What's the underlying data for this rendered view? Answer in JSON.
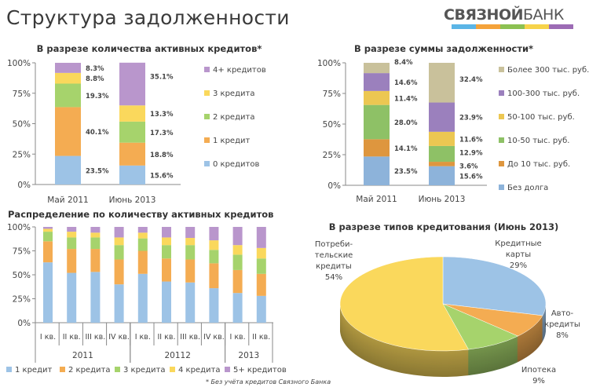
{
  "page": {
    "title": "Структура задолженности",
    "logo": {
      "bold": "СВЯЗНОЙ",
      "light": "БАНК",
      "stripe_colors": [
        "#5bb5e6",
        "#f4a23a",
        "#8cc152",
        "#f6d34a",
        "#9c6bb5"
      ]
    },
    "footnote": "* Без учёта кредитов Связного Банка"
  },
  "chart_data": [
    {
      "type": "bar",
      "stacked": true,
      "title": "В разрезе количества активных кредитов*",
      "categories": [
        "Май 2011",
        "Июнь 2013"
      ],
      "yticks": [
        "0%",
        "25%",
        "50%",
        "75%",
        "100%"
      ],
      "ylim": [
        0,
        100
      ],
      "legend_position": "right",
      "series": [
        {
          "name": "0 кредитов",
          "values": [
            23.5,
            15.6
          ],
          "color": "#9dc3e6"
        },
        {
          "name": "1 кредит",
          "values": [
            40.1,
            18.8
          ],
          "color": "#f4ac52"
        },
        {
          "name": "2 кредита",
          "values": [
            19.3,
            17.3
          ],
          "color": "#a6d36c"
        },
        {
          "name": "3 кредита",
          "values": [
            8.8,
            13.3
          ],
          "color": "#fad85c"
        },
        {
          "name": "4+ кредитов",
          "values": [
            8.3,
            35.1
          ],
          "color": "#b996cc"
        }
      ]
    },
    {
      "type": "bar",
      "stacked": true,
      "title": "В разрезе суммы задолженности*",
      "categories": [
        "Май 2011",
        "Июнь 2013"
      ],
      "yticks": [
        "0%",
        "25%",
        "50%",
        "75%",
        "100%"
      ],
      "ylim": [
        0,
        100
      ],
      "legend_position": "right",
      "series": [
        {
          "name": "Без долга",
          "values": [
            23.5,
            15.6
          ],
          "color": "#8db3da"
        },
        {
          "name": "До 10 тыс. руб.",
          "values": [
            14.1,
            3.6
          ],
          "color": "#de963e"
        },
        {
          "name": "10-50 тыс. руб.",
          "values": [
            28.0,
            12.9
          ],
          "color": "#8ec166"
        },
        {
          "name": "50-100 тыс. руб.",
          "values": [
            11.4,
            11.6
          ],
          "color": "#ecc752"
        },
        {
          "name": "100-300 тыс. руб.",
          "values": [
            14.6,
            23.9
          ],
          "color": "#9b80bd"
        },
        {
          "name": "Более 300 тыс. руб.",
          "values": [
            8.4,
            32.4
          ],
          "color": "#c9c19b"
        }
      ]
    },
    {
      "type": "bar",
      "stacked": true,
      "title": "Распределение по количеству активных кредитов",
      "categories": [
        "I кв.",
        "II кв.",
        "III кв.",
        "IV кв.",
        "I кв.",
        "II кв.",
        "III кв.",
        "IV кв.",
        "I кв.",
        "II кв."
      ],
      "groups": [
        {
          "label": "2011",
          "count": 4
        },
        {
          "label": "20112",
          "count": 4
        },
        {
          "label": "2013",
          "count": 2
        }
      ],
      "yticks": [
        "0%",
        "25%",
        "50%",
        "75%",
        "100%"
      ],
      "ylim": [
        0,
        100
      ],
      "legend_position": "bottom",
      "series": [
        {
          "name": "1 кредит",
          "values": [
            63,
            52,
            53,
            40,
            51,
            43,
            42,
            36,
            31,
            28
          ],
          "color": "#9dc3e6"
        },
        {
          "name": "2 кредита",
          "values": [
            22,
            25,
            24,
            26,
            24,
            24,
            24,
            26,
            24,
            23
          ],
          "color": "#f4ac52"
        },
        {
          "name": "3 кредита",
          "values": [
            10,
            12,
            12,
            15,
            13,
            14,
            15,
            14,
            16,
            16
          ],
          "color": "#a6d36c"
        },
        {
          "name": "4 кредита",
          "values": [
            3,
            6,
            5,
            8,
            6,
            8,
            7.5,
            10,
            10,
            11
          ],
          "color": "#fad85c"
        },
        {
          "name": "5+ кредитов",
          "values": [
            2,
            5,
            6,
            11,
            6,
            11,
            11.5,
            14,
            19,
            22
          ],
          "color": "#b996cc"
        }
      ]
    },
    {
      "type": "pie",
      "title": "В разрезе типов кредитования  (Июнь 2013)",
      "slices": [
        {
          "label": "Кредитные карты",
          "lines": [
            "Кредитные",
            "карты"
          ],
          "value": 29,
          "value_label": "29%",
          "color": "#9dc3e6"
        },
        {
          "label": "Авто-кредиты",
          "lines": [
            "Авто-",
            "кредиты"
          ],
          "value": 8,
          "value_label": "8%",
          "color": "#f4ac52"
        },
        {
          "label": "Ипотека",
          "lines": [
            "Ипотека"
          ],
          "value": 9,
          "value_label": "9%",
          "color": "#a6d36c"
        },
        {
          "label": "Потребительские кредиты",
          "lines": [
            "Потреби-",
            "тельские",
            "кредиты"
          ],
          "value": 54,
          "value_label": "54%",
          "color": "#fad85c"
        }
      ]
    }
  ]
}
